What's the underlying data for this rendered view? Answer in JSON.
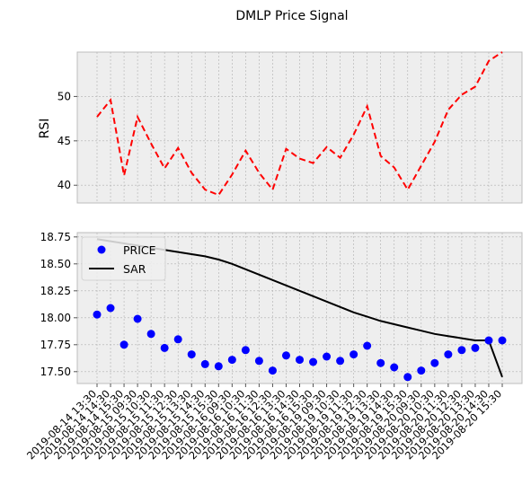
{
  "chart_data": {
    "title": "DMLP Price Signal",
    "x_labels": [
      "2019-08-14 13:30",
      "2019-08-14 14:30",
      "2019-08-14 15:30",
      "2019-08-15 09:30",
      "2019-08-15 10:30",
      "2019-08-15 11:30",
      "2019-08-15 12:30",
      "2019-08-15 13:30",
      "2019-08-15 14:30",
      "2019-08-15 15:30",
      "2019-08-16 09:30",
      "2019-08-16 10:30",
      "2019-08-16 11:30",
      "2019-08-16 12:30",
      "2019-08-16 13:30",
      "2019-08-16 14:30",
      "2019-08-16 15:30",
      "2019-08-19 09:30",
      "2019-08-19 10:30",
      "2019-08-19 11:30",
      "2019-08-19 12:30",
      "2019-08-19 13:30",
      "2019-08-19 14:30",
      "2019-08-19 15:30",
      "2019-08-20 09:30",
      "2019-08-20 10:30",
      "2019-08-20 11:30",
      "2019-08-20 12:30",
      "2019-08-20 13:30",
      "2019-08-20 14:30",
      "2019-08-20 15:30"
    ],
    "panels": [
      {
        "type": "line",
        "ylabel": "RSI",
        "ylim": [
          38.0,
          55.0
        ],
        "yticks": [
          40,
          45,
          50
        ],
        "grid": true,
        "series": [
          {
            "style": "dashed",
            "color": "#ff0000",
            "values": [
              47.7,
              49.6,
              41.1,
              47.7,
              44.7,
              41.9,
              44.2,
              41.4,
              39.5,
              38.9,
              41.2,
              43.9,
              41.4,
              39.5,
              44.1,
              43.0,
              42.5,
              44.3,
              43.1,
              45.7,
              48.9,
              43.3,
              42.0,
              39.5,
              42.2,
              44.9,
              48.5,
              50.2,
              51.1,
              54.0,
              56.2
            ]
          }
        ]
      },
      {
        "type": "line",
        "ylim": [
          17.39,
          18.79
        ],
        "yticks": [
          "17.50",
          "17.75",
          "18.00",
          "18.25",
          "18.50",
          "18.75"
        ],
        "grid": true,
        "legend": "top-left",
        "series": [
          {
            "name": "PRICE",
            "style": "markers",
            "color": "#0000ff",
            "values": [
              18.03,
              18.09,
              17.75,
              17.99,
              17.85,
              17.72,
              17.8,
              17.66,
              17.57,
              17.55,
              17.61,
              17.7,
              17.6,
              17.51,
              17.65,
              17.61,
              17.59,
              17.64,
              17.6,
              17.66,
              17.74,
              17.58,
              17.54,
              17.45,
              17.51,
              17.58,
              17.66,
              17.7,
              17.72,
              17.79,
              17.79
            ]
          },
          {
            "name": "SAR",
            "style": "solid",
            "color": "#000000",
            "values": [
              18.73,
              18.71,
              18.69,
              18.67,
              18.65,
              18.63,
              18.61,
              18.59,
              18.57,
              18.54,
              18.5,
              18.45,
              18.4,
              18.35,
              18.3,
              18.25,
              18.2,
              18.15,
              18.1,
              18.05,
              18.01,
              17.97,
              17.94,
              17.91,
              17.88,
              17.85,
              17.83,
              17.81,
              17.79,
              17.79,
              17.45
            ]
          }
        ]
      }
    ]
  }
}
